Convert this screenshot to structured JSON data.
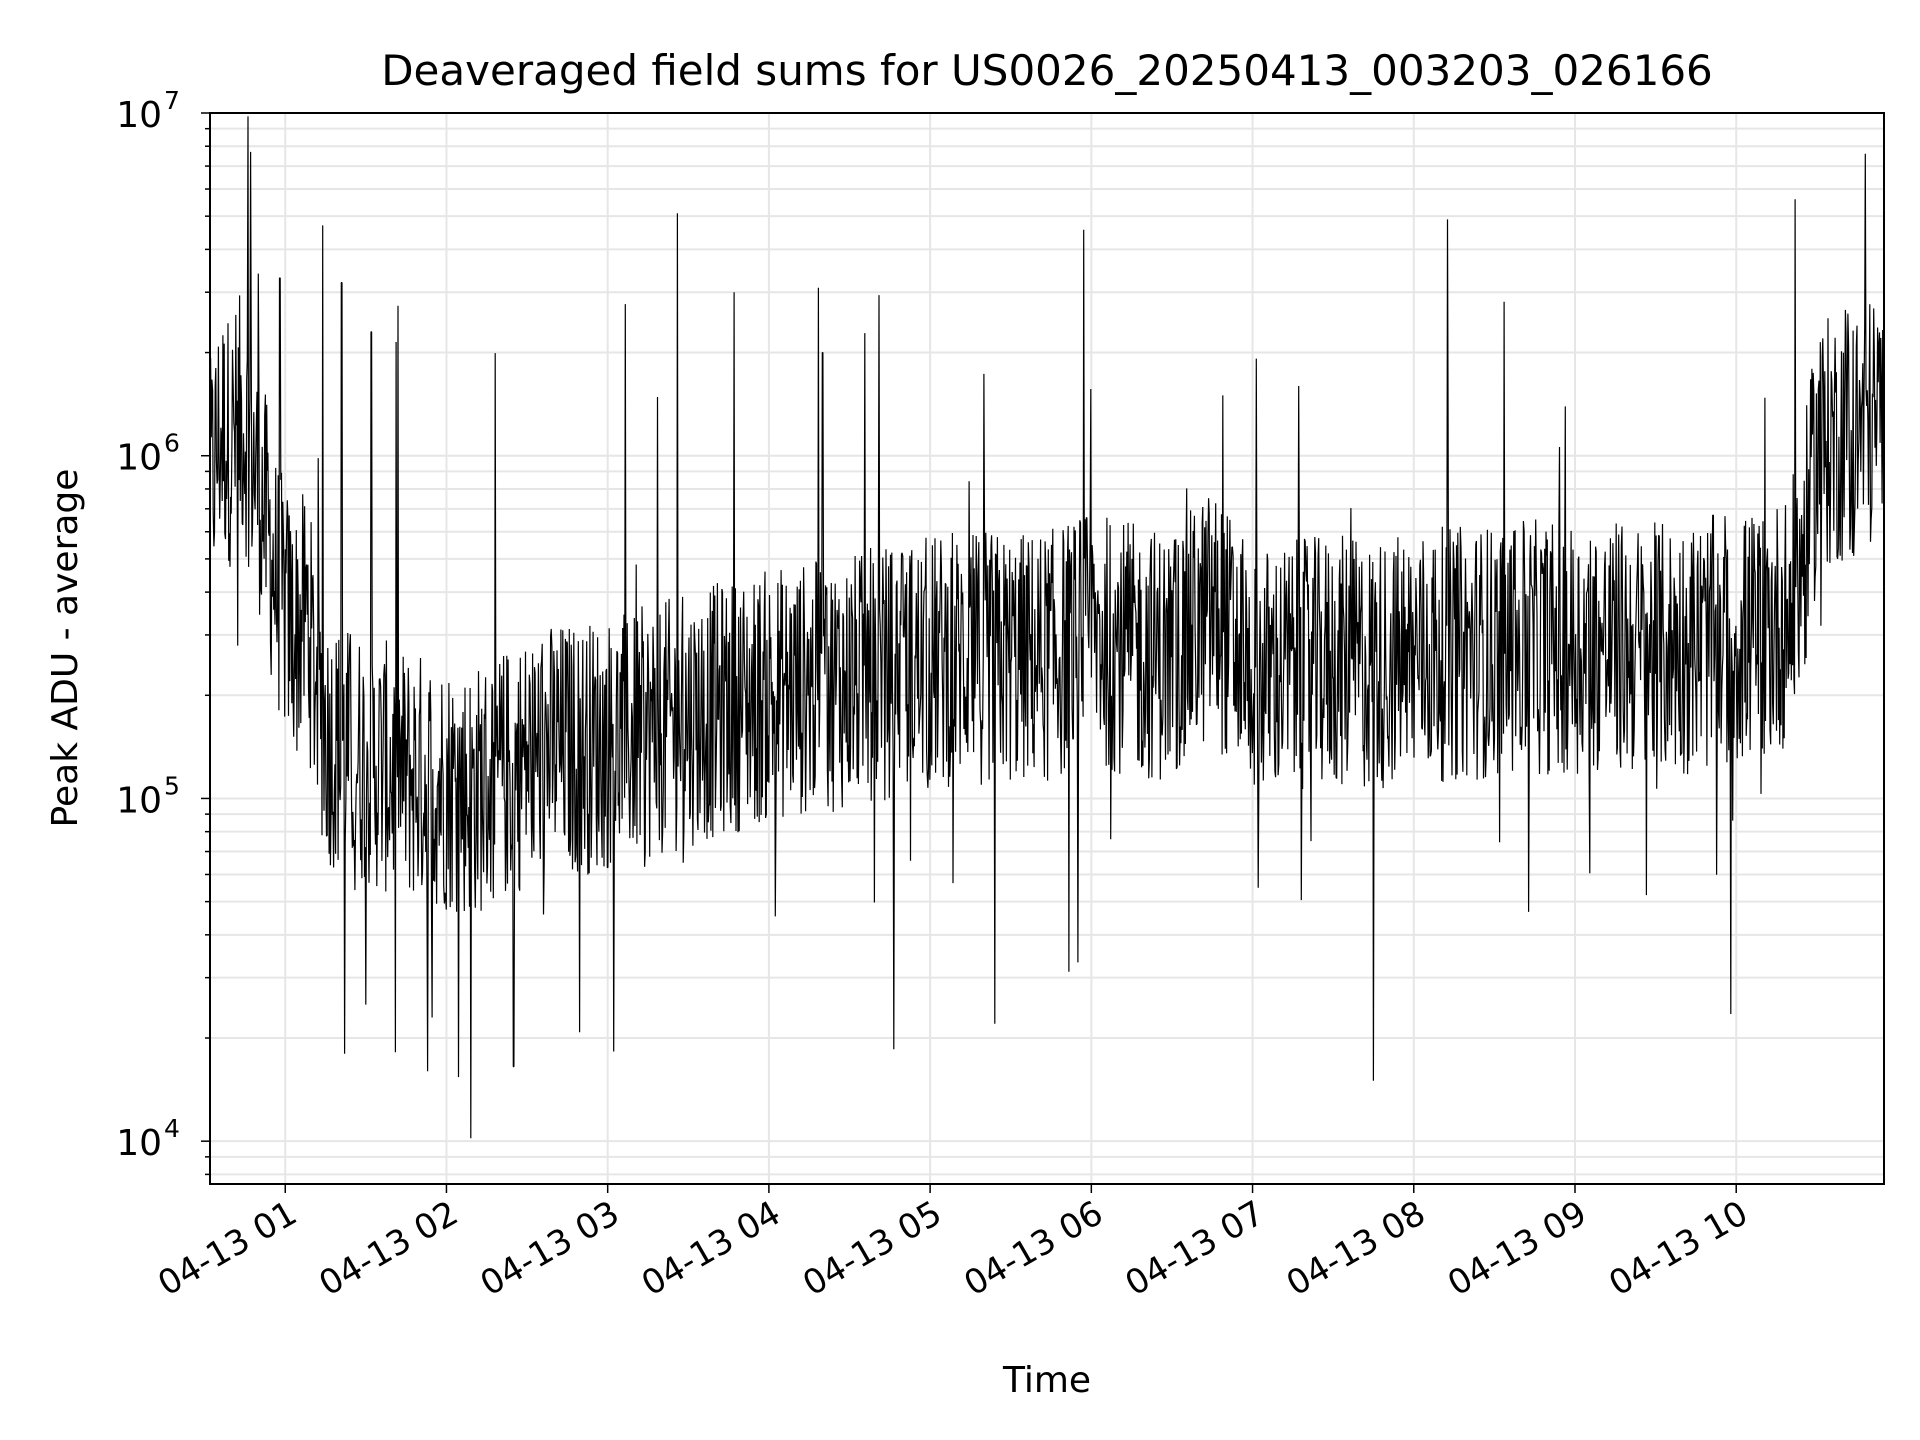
{
  "chart_data": {
    "type": "line",
    "title": "Deaveraged field sums for US0026_20250413_003203_026166",
    "xlabel": "Time",
    "ylabel": "Peak ADU - average",
    "yscale": "log",
    "ylim": [
      7500,
      10000000
    ],
    "xlim": [
      "2025-04-13 00:32",
      "2025-04-13 10:55"
    ],
    "grid": true,
    "line_color": "#000000",
    "x_ticks": [
      {
        "t": "2025-04-13 01:00",
        "label": "04-13 01"
      },
      {
        "t": "2025-04-13 02:00",
        "label": "04-13 02"
      },
      {
        "t": "2025-04-13 03:00",
        "label": "04-13 03"
      },
      {
        "t": "2025-04-13 04:00",
        "label": "04-13 04"
      },
      {
        "t": "2025-04-13 05:00",
        "label": "04-13 05"
      },
      {
        "t": "2025-04-13 06:00",
        "label": "04-13 06"
      },
      {
        "t": "2025-04-13 07:00",
        "label": "04-13 07"
      },
      {
        "t": "2025-04-13 08:00",
        "label": "04-13 08"
      },
      {
        "t": "2025-04-13 09:00",
        "label": "04-13 09"
      },
      {
        "t": "2025-04-13 10:00",
        "label": "04-13 10"
      }
    ],
    "y_ticks": [
      {
        "value": 10000,
        "base": "10",
        "exp": "4"
      },
      {
        "value": 100000,
        "base": "10",
        "exp": "5"
      },
      {
        "value": 1000000,
        "base": "10",
        "exp": "6"
      },
      {
        "value": 10000000,
        "base": "10",
        "exp": "7"
      }
    ],
    "series": [
      {
        "points": [
          [
            "2025-04-13 00:32",
            800000
          ],
          [
            "2025-04-13 00:36",
            1200000
          ],
          [
            "2025-04-13 00:40",
            1100000
          ],
          [
            "2025-04-13 00:44",
            1300000
          ],
          [
            "2025-04-13 00:48",
            1000000
          ],
          [
            "2025-04-13 00:52",
            700000
          ],
          [
            "2025-04-13 00:56",
            450000
          ],
          [
            "2025-04-13 01:00",
            350000
          ],
          [
            "2025-04-13 01:04",
            300000
          ],
          [
            "2025-04-13 01:08",
            350000
          ],
          [
            "2025-04-13 01:12",
            200000
          ],
          [
            "2025-04-13 01:16",
            150000
          ],
          [
            "2025-04-13 01:20",
            140000
          ],
          [
            "2025-04-13 01:30",
            130000
          ],
          [
            "2025-04-13 01:40",
            120000
          ],
          [
            "2025-04-13 01:50",
            115000
          ],
          [
            "2025-04-13 02:00",
            110000
          ],
          [
            "2025-04-13 02:10",
            105000
          ],
          [
            "2025-04-13 02:20",
            115000
          ],
          [
            "2025-04-13 02:30",
            130000
          ],
          [
            "2025-04-13 02:40",
            140000
          ],
          [
            "2025-04-13 02:50",
            140000
          ],
          [
            "2025-04-13 03:00",
            145000
          ],
          [
            "2025-04-13 03:15",
            155000
          ],
          [
            "2025-04-13 03:30",
            170000
          ],
          [
            "2025-04-13 03:45",
            185000
          ],
          [
            "2025-04-13 04:00",
            200000
          ],
          [
            "2025-04-13 04:15",
            210000
          ],
          [
            "2025-04-13 04:30",
            220000
          ],
          [
            "2025-04-13 04:45",
            235000
          ],
          [
            "2025-04-13 05:00",
            250000
          ],
          [
            "2025-04-13 05:15",
            260000
          ],
          [
            "2025-04-13 05:30",
            255000
          ],
          [
            "2025-04-13 05:45",
            260000
          ],
          [
            "2025-04-13 06:00",
            300000
          ],
          [
            "2025-04-13 06:15",
            270000
          ],
          [
            "2025-04-13 06:30",
            260000
          ],
          [
            "2025-04-13 06:45",
            350000
          ],
          [
            "2025-04-13 07:00",
            230000
          ],
          [
            "2025-04-13 07:15",
            240000
          ],
          [
            "2025-04-13 07:30",
            250000
          ],
          [
            "2025-04-13 07:45",
            245000
          ],
          [
            "2025-04-13 08:00",
            260000
          ],
          [
            "2025-04-13 08:15",
            265000
          ],
          [
            "2025-04-13 08:30",
            270000
          ],
          [
            "2025-04-13 08:45",
            275000
          ],
          [
            "2025-04-13 09:00",
            280000
          ],
          [
            "2025-04-13 09:15",
            275000
          ],
          [
            "2025-04-13 09:30",
            270000
          ],
          [
            "2025-04-13 09:45",
            280000
          ],
          [
            "2025-04-13 10:00",
            290000
          ],
          [
            "2025-04-13 10:10",
            300000
          ],
          [
            "2025-04-13 10:20",
            340000
          ],
          [
            "2025-04-13 10:25",
            500000
          ],
          [
            "2025-04-13 10:30",
            1000000
          ],
          [
            "2025-04-13 10:35",
            1100000
          ],
          [
            "2025-04-13 10:40",
            1150000
          ],
          [
            "2025-04-13 10:45",
            1200000
          ],
          [
            "2025-04-13 10:50",
            1250000
          ],
          [
            "2025-04-13 10:55",
            1300000
          ]
        ],
        "spikes": [
          [
            "2025-04-13 00:47",
            7700000
          ],
          [
            "2025-04-13 00:50",
            3400000
          ],
          [
            "2025-04-13 00:58",
            3300000
          ],
          [
            "2025-04-13 01:14",
            4700000
          ],
          [
            "2025-04-13 01:21",
            3200000
          ],
          [
            "2025-04-13 01:22",
            18000
          ],
          [
            "2025-04-13 01:32",
            2300000
          ],
          [
            "2025-04-13 01:53",
            16000
          ],
          [
            "2025-04-13 02:09",
            10200
          ],
          [
            "2025-04-13 02:25",
            16500
          ],
          [
            "2025-04-13 03:26",
            5100000
          ],
          [
            "2025-04-13 03:47",
            3000000
          ],
          [
            "2025-04-13 04:20",
            2000000
          ],
          [
            "2025-04-13 05:24",
            22000
          ],
          [
            "2025-04-13 06:49",
            1500000
          ],
          [
            "2025-04-13 07:45",
            15000
          ],
          [
            "2025-04-13 09:58",
            23500
          ],
          [
            "2025-04-13 10:22",
            5600000
          ],
          [
            "2025-04-13 10:48",
            7600000
          ]
        ]
      }
    ]
  }
}
